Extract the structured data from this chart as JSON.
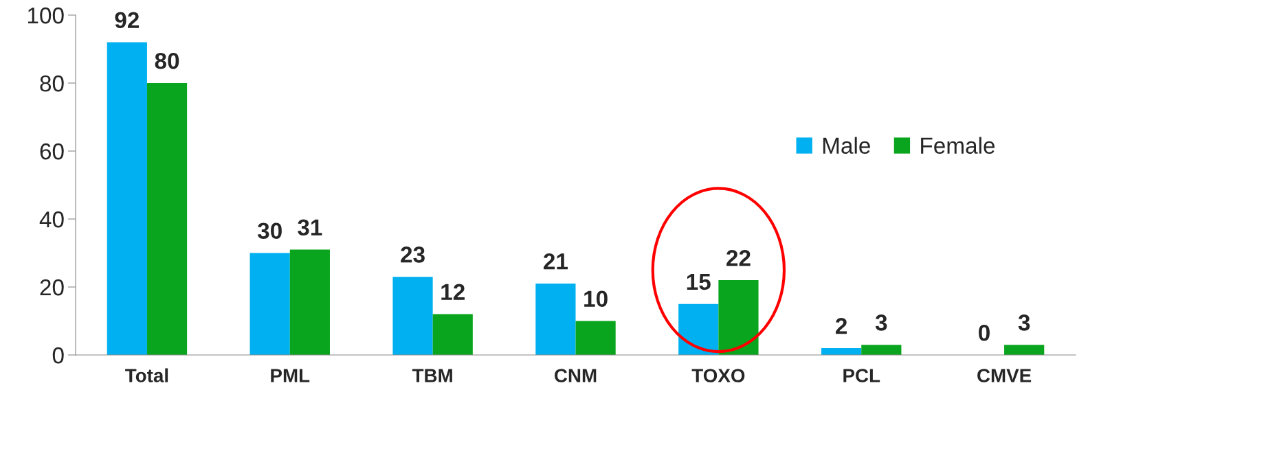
{
  "chart_data": {
    "type": "bar",
    "categories": [
      "Total",
      "PML",
      "TBM",
      "CNM",
      "TOXO",
      "PCL",
      "CMVE"
    ],
    "series": [
      {
        "name": "Male",
        "color": "#00b0f0",
        "values": [
          92,
          30,
          23,
          21,
          15,
          2,
          0
        ]
      },
      {
        "name": "Female",
        "color": "#0aa51e",
        "values": [
          80,
          31,
          12,
          10,
          22,
          3,
          3
        ]
      }
    ],
    "ylim": [
      0,
      100
    ],
    "yticks": [
      0,
      20,
      40,
      60,
      80,
      100
    ],
    "data_labels": true,
    "legend": "right",
    "grid": false
  }
}
